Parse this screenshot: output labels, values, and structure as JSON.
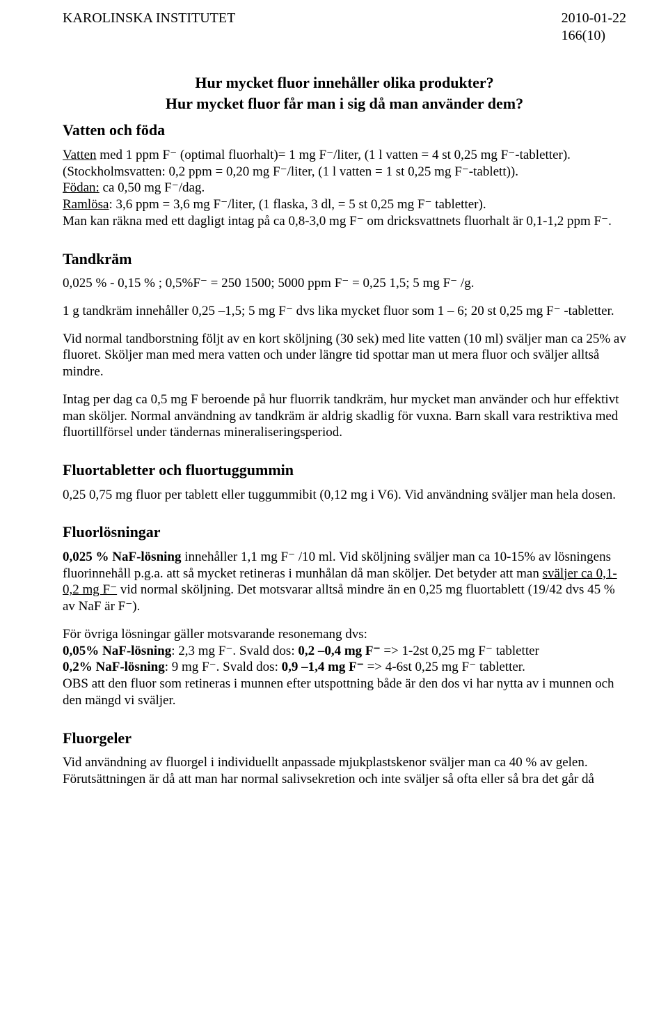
{
  "header": {
    "institute": "KAROLINSKA INSTITUTET",
    "date": "2010-01-22",
    "pagenum": "166(10)"
  },
  "mainHeading": {
    "line1": "Hur mycket fluor innehåller olika produkter?",
    "line2": "Hur mycket fluor får man i sig då man använder dem?"
  },
  "vatten": {
    "title": "Vatten och föda",
    "l1a": "Vatten",
    "l1b": " med 1 ppm F⁻ (optimal fluorhalt)= 1 mg F⁻/liter, (1 l vatten = 4 st 0,25 mg F⁻-tabletter).",
    "l2": "(Stockholmsvatten: 0,2 ppm = 0,20 mg F⁻/liter, (1 l vatten = 1 st 0,25 mg F⁻-tablett)).",
    "l3a": "Födan:",
    "l3b": " ca 0,50 mg F⁻/dag.",
    "l4a": "Ramlösa",
    "l4b": ": 3,6 ppm = 3,6 mg F⁻/liter, (1 flaska, 3 dl, = 5 st 0,25 mg F⁻ tabletter).",
    "l5": "Man kan räkna med ett dagligt intag på ca 0,8-3,0 mg F⁻ om dricksvattnets fluorhalt är 0,1-1,2 ppm F⁻."
  },
  "tandkram": {
    "title": "Tandkräm",
    "p1": "0,025 % - 0,15 % ; 0,5%F⁻ = 250 1500; 5000 ppm F⁻ = 0,25 1,5; 5 mg F⁻ /g.",
    "p2": "1 g tandkräm innehåller 0,25 –1,5; 5 mg F⁻ dvs lika mycket fluor som 1 – 6; 20 st 0,25 mg F⁻ -tabletter.",
    "p3": "Vid normal tandborstning följt av en kort sköljning (30 sek) med lite vatten (10 ml) sväljer man ca 25% av fluoret. Sköljer man med mera vatten och under längre tid spottar man ut mera fluor och sväljer alltså mindre.",
    "p4": "Intag per dag ca 0,5 mg F beroende på hur fluorrik tandkräm, hur mycket man använder och hur effektivt man sköljer. Normal användning av tandkräm är aldrig skadlig för vuxna. Barn skall vara restriktiva med fluortillförsel under tändernas mineraliseringsperiod."
  },
  "tabletter": {
    "title": "Fluortabletter och fluortuggummin",
    "p1": "0,25 0,75 mg fluor per tablett eller tuggummibit (0,12 mg i V6). Vid användning sväljer man hela dosen."
  },
  "losningar": {
    "title": "Fluorlösningar",
    "p1a": "0,025 % NaF-lösning",
    "p1b": " innehåller 1,1 mg F⁻ /10 ml. Vid sköljning sväljer man ca 10-15% av lösningens fluorinnehåll p.g.a. att så mycket retineras i munhålan då man sköljer. Det betyder att man ",
    "p1c": "sväljer ca 0,1-0,2 mg F⁻",
    "p1d": " vid normal sköljning. Det motsvarar alltså mindre än en 0,25 mg fluortablett (19/42 dvs 45 % av NaF är F⁻).",
    "p2_intro": "För övriga lösningar gäller motsvarande resonemang dvs:",
    "p2_l1a": "0,05% NaF-lösning",
    "p2_l1b": ": 2,3 mg F⁻. Svald dos: ",
    "p2_l1c": "0,2 –0,4 mg F⁻",
    "p2_l1d": " => 1-2st 0,25 mg F⁻ tabletter",
    "p2_l2a": "0,2% NaF-lösning",
    "p2_l2b": ": 9 mg F⁻. Svald dos: ",
    "p2_l2c": "0,9 –1,4 mg F⁻",
    "p2_l2d": " => 4-6st 0,25 mg F⁻ tabletter.",
    "p2_l3": "OBS att den fluor som retineras i munnen efter utspottning både är den dos vi har nytta av i munnen och den mängd vi sväljer."
  },
  "geler": {
    "title": "Fluorgeler",
    "p1": "Vid användning av fluorgel i individuellt anpassade mjukplastskenor sväljer man ca 40 % av gelen. Förutsättningen är då att man har normal salivsekretion och inte sväljer så ofta eller så bra det går då"
  }
}
